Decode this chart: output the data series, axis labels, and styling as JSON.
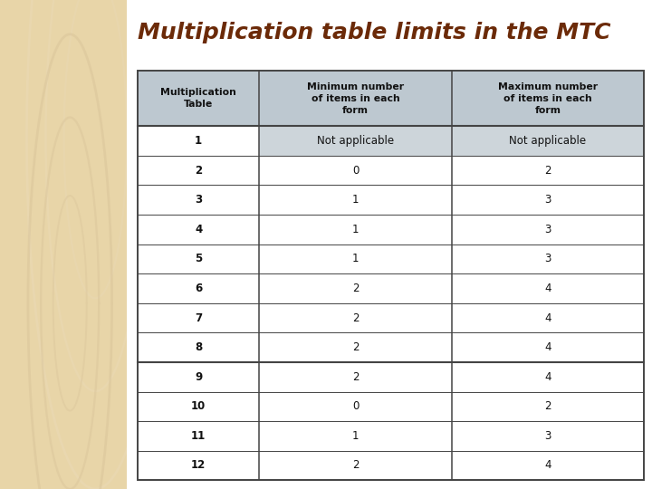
{
  "title": "Multiplication table limits in the MTC",
  "title_color": "#6B2A08",
  "title_fontsize": 18,
  "bg_left_color": "#E8D5A8",
  "bg_right_color": "#FFFFFF",
  "header_bg": "#BDC8D0",
  "row1_special_bg": "#CDD5DA",
  "col_headers": [
    "Multiplication\nTable",
    "Minimum number\nof items in each\nform",
    "Maximum number\nof items in each\nform"
  ],
  "rows": [
    [
      "1",
      "Not applicable",
      "Not applicable"
    ],
    [
      "2",
      "0",
      "2"
    ],
    [
      "3",
      "1",
      "3"
    ],
    [
      "4",
      "1",
      "3"
    ],
    [
      "5",
      "1",
      "3"
    ],
    [
      "6",
      "2",
      "4"
    ],
    [
      "7",
      "2",
      "4"
    ],
    [
      "8",
      "2",
      "4"
    ],
    [
      "9",
      "2",
      "4"
    ],
    [
      "10",
      "0",
      "2"
    ],
    [
      "11",
      "1",
      "3"
    ],
    [
      "12",
      "2",
      "4"
    ]
  ],
  "border_color": "#444444",
  "thick_after_row": 8,
  "decor_color": "#D9C49A",
  "decor_color2": "#EAD9B5"
}
